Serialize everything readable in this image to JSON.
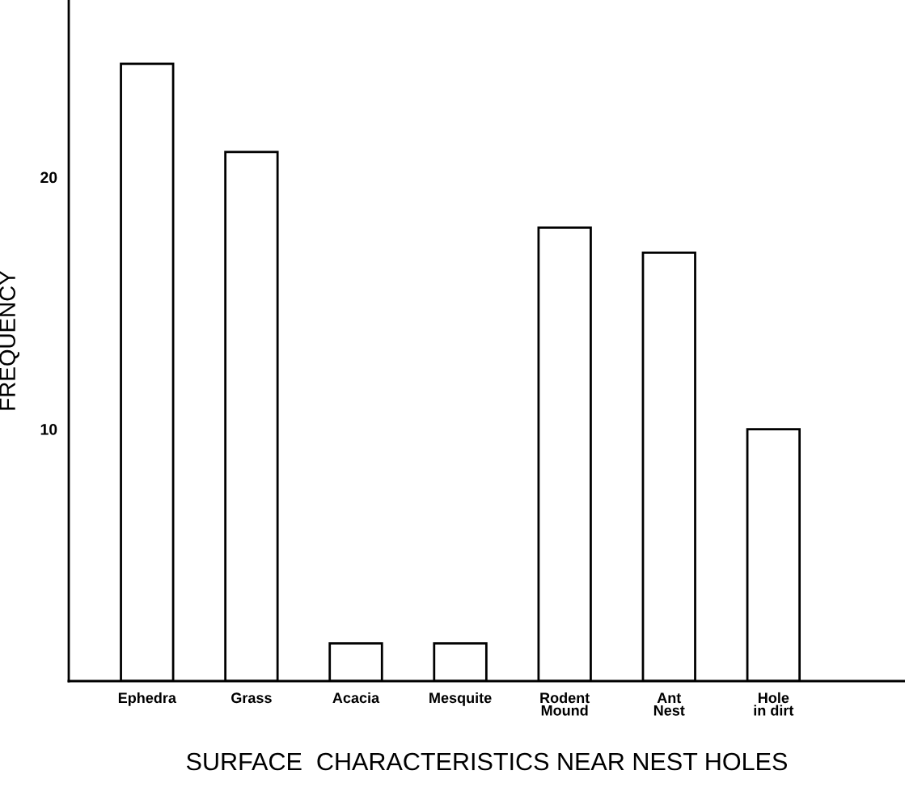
{
  "chart_data": {
    "type": "bar",
    "xlabel": "SURFACE  CHARACTERISTICS NEAR NEST HOLES",
    "ylabel": "FREQUENCY",
    "categories": [
      "Ephedra",
      "Grass",
      "Acacia",
      "Mesquite",
      "Rodent\nMound",
      "Ant\nNest",
      "Hole\nin dirt"
    ],
    "values": [
      24.5,
      21,
      1.5,
      1.5,
      18,
      17,
      10
    ],
    "color": "#ffffff",
    "ylim": [
      0,
      27
    ],
    "yticks": [
      10,
      20
    ],
    "grid": false,
    "legend": false
  }
}
